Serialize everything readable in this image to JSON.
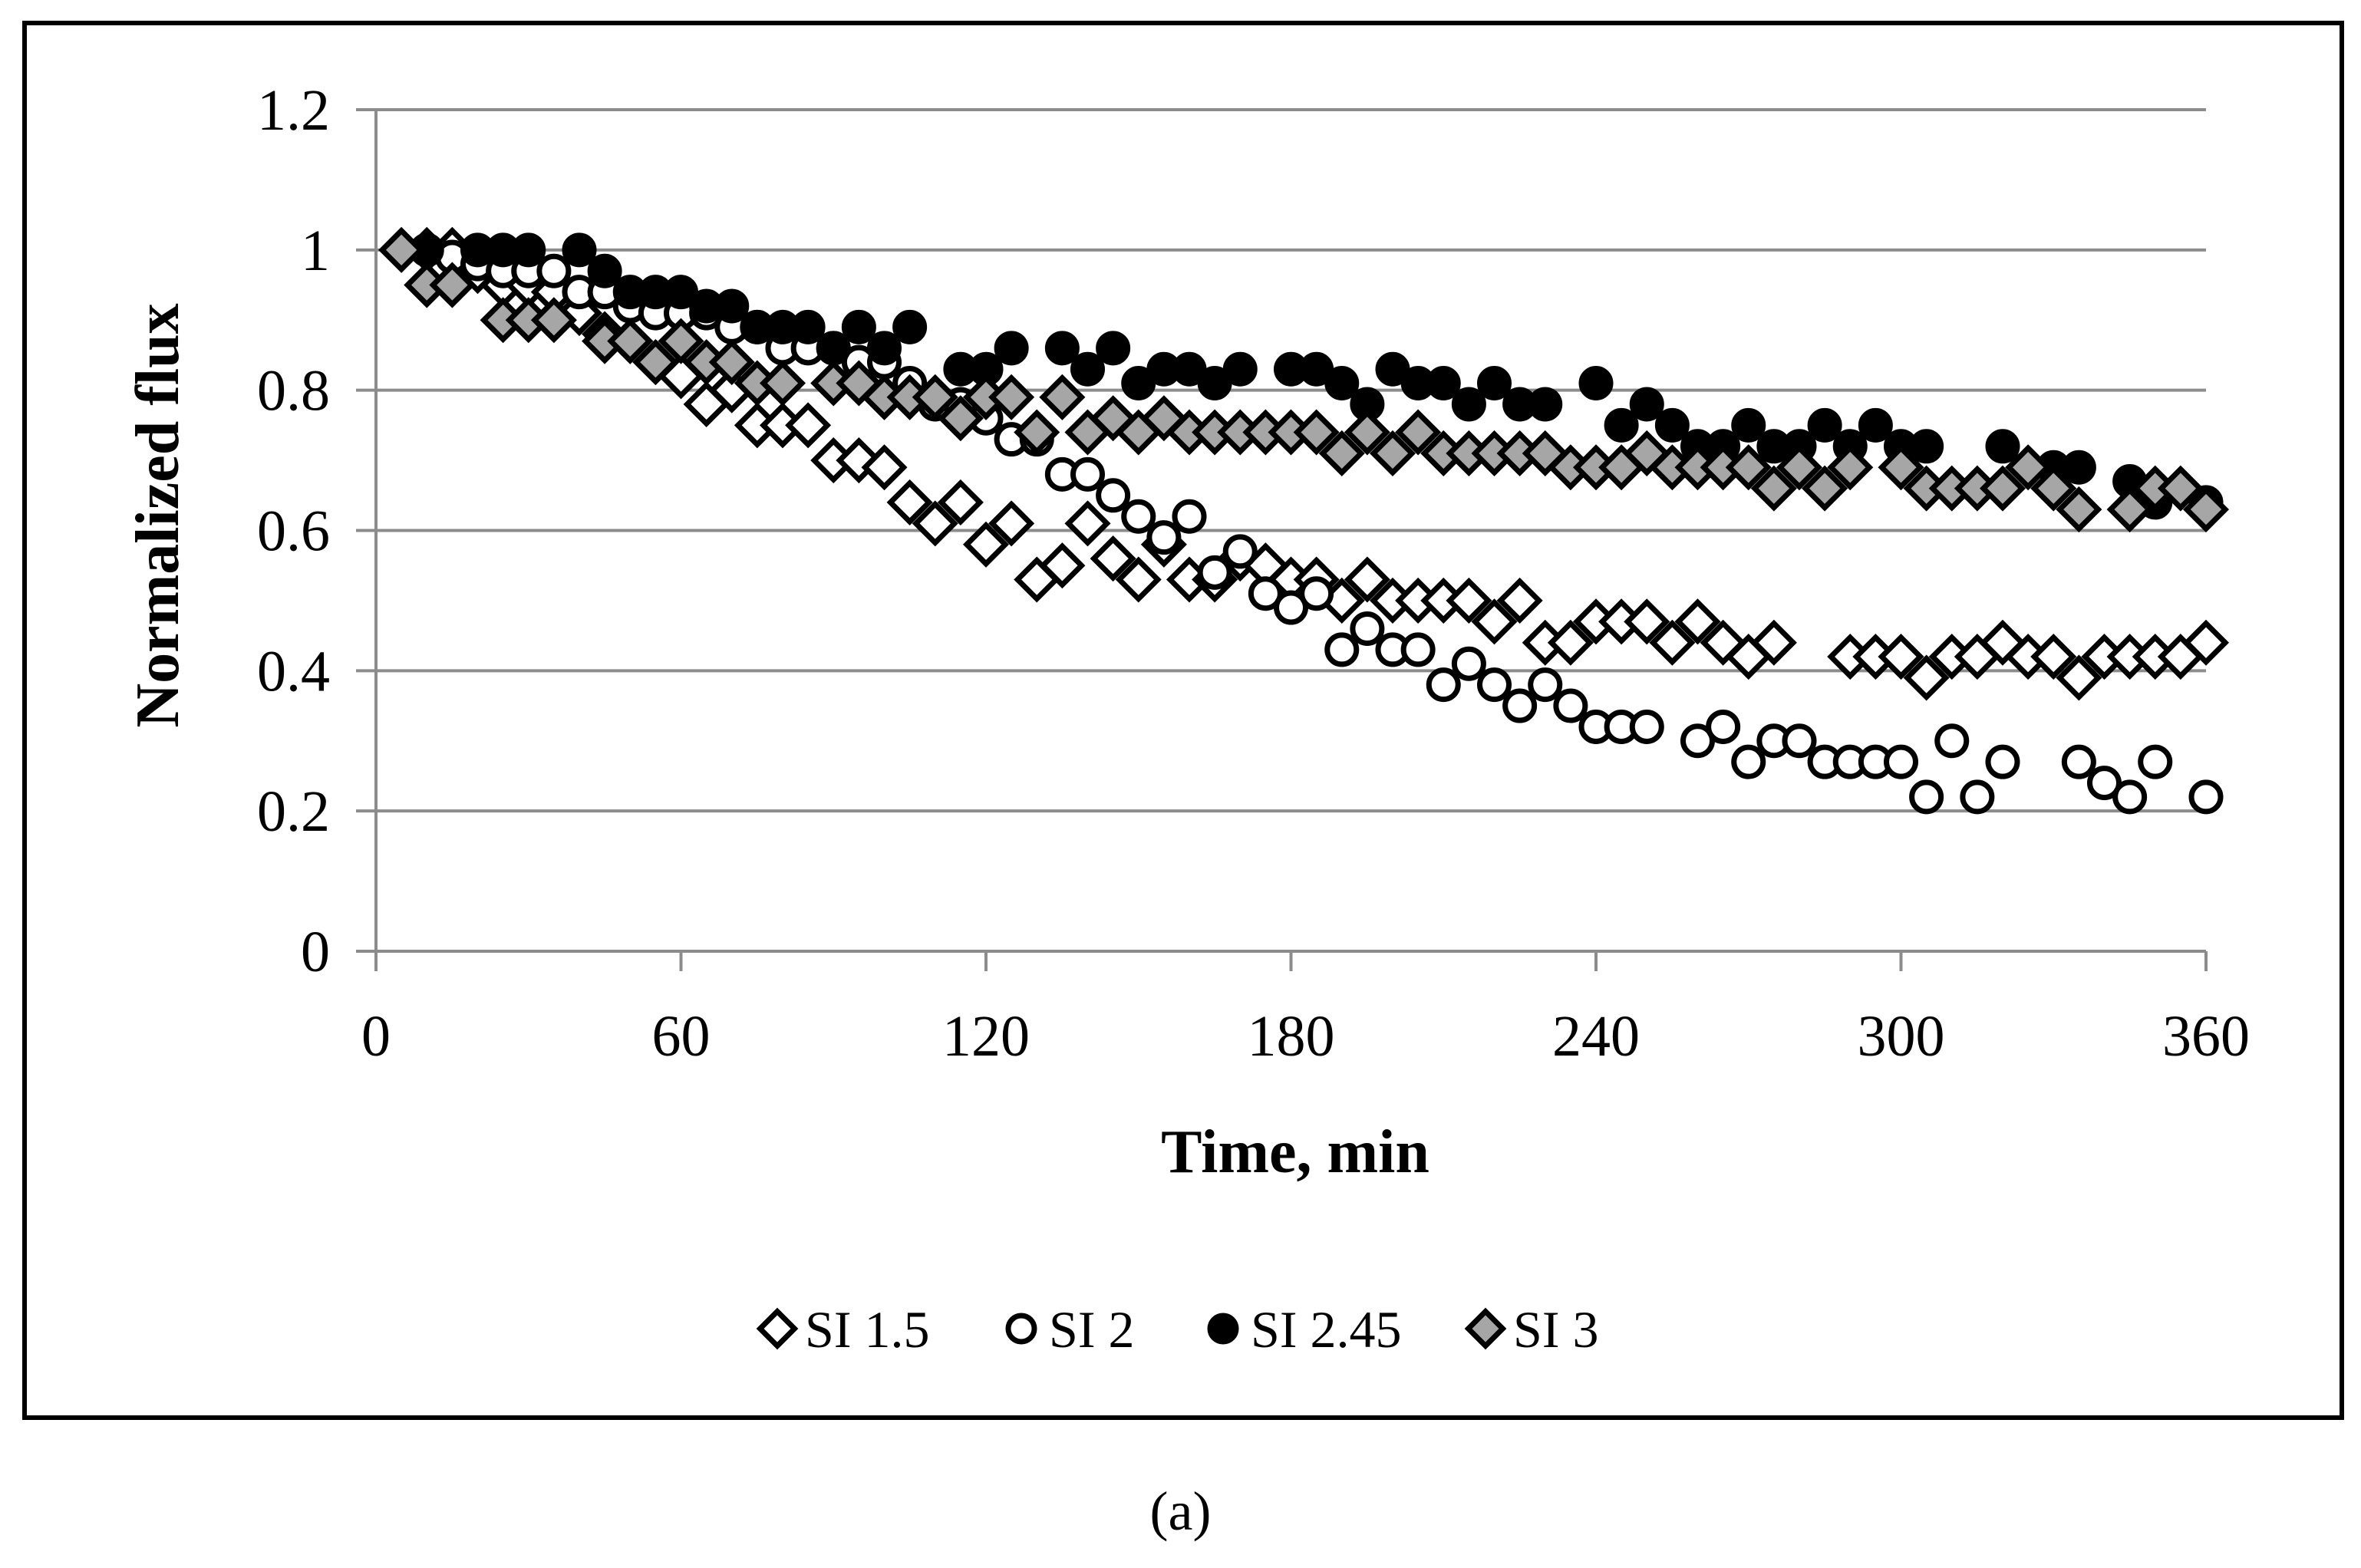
{
  "caption": "(a)",
  "colors": {
    "grid": "#8c8c8c",
    "axis": "#8c8c8c",
    "frame": "#000000",
    "marker_stroke": "#000000",
    "fill_open": "#ffffff",
    "fill_black": "#000000",
    "fill_gray": "#a6a6a6"
  },
  "chart_data": {
    "type": "scatter",
    "title": "",
    "xlabel": "Time, min",
    "ylabel": "Normalized flux",
    "xlim": [
      0,
      360
    ],
    "ylim": [
      0,
      1.2
    ],
    "xticks": [
      0,
      60,
      120,
      180,
      240,
      300,
      360
    ],
    "yticks": [
      0,
      0.2,
      0.4,
      0.6,
      0.8,
      1,
      1.2
    ],
    "xtick_labels": [
      "0",
      "60",
      "120",
      "180",
      "240",
      "300",
      "360"
    ],
    "ytick_labels": [
      "0",
      "0.2",
      "0.4",
      "0.6",
      "0.8",
      "1",
      "1.2"
    ],
    "grid": "horizontal",
    "legend_position": "bottom",
    "series": [
      {
        "name": "SI 1.5",
        "marker": "diamond",
        "fill": "#ffffff",
        "points": [
          [
            10,
            1
          ],
          [
            15,
            1
          ],
          [
            20,
            0.97
          ],
          [
            25,
            0.95
          ],
          [
            30,
            0.95
          ],
          [
            35,
            0.94
          ],
          [
            40,
            0.91
          ],
          [
            45,
            0.88
          ],
          [
            50,
            0.87
          ],
          [
            55,
            0.84
          ],
          [
            60,
            0.82
          ],
          [
            65,
            0.78
          ],
          [
            70,
            0.8
          ],
          [
            75,
            0.75
          ],
          [
            80,
            0.75
          ],
          [
            85,
            0.75
          ],
          [
            90,
            0.7
          ],
          [
            95,
            0.7
          ],
          [
            100,
            0.69
          ],
          [
            105,
            0.64
          ],
          [
            110,
            0.61
          ],
          [
            115,
            0.64
          ],
          [
            120,
            0.58
          ],
          [
            125,
            0.61
          ],
          [
            130,
            0.53
          ],
          [
            135,
            0.55
          ],
          [
            140,
            0.61
          ],
          [
            145,
            0.56
          ],
          [
            150,
            0.53
          ],
          [
            155,
            0.58
          ],
          [
            160,
            0.53
          ],
          [
            165,
            0.53
          ],
          [
            170,
            0.56
          ],
          [
            175,
            0.55
          ],
          [
            180,
            0.53
          ],
          [
            185,
            0.53
          ],
          [
            190,
            0.5
          ],
          [
            195,
            0.53
          ],
          [
            200,
            0.5
          ],
          [
            205,
            0.5
          ],
          [
            210,
            0.5
          ],
          [
            215,
            0.5
          ],
          [
            220,
            0.47
          ],
          [
            225,
            0.5
          ],
          [
            230,
            0.44
          ],
          [
            235,
            0.44
          ],
          [
            240,
            0.47
          ],
          [
            245,
            0.47
          ],
          [
            250,
            0.47
          ],
          [
            255,
            0.44
          ],
          [
            260,
            0.47
          ],
          [
            265,
            0.44
          ],
          [
            270,
            0.42
          ],
          [
            275,
            0.44
          ],
          [
            290,
            0.42
          ],
          [
            295,
            0.42
          ],
          [
            300,
            0.42
          ],
          [
            305,
            0.39
          ],
          [
            310,
            0.42
          ],
          [
            315,
            0.42
          ],
          [
            320,
            0.44
          ],
          [
            325,
            0.42
          ],
          [
            330,
            0.42
          ],
          [
            335,
            0.39
          ],
          [
            340,
            0.42
          ],
          [
            345,
            0.42
          ],
          [
            350,
            0.42
          ],
          [
            355,
            0.42
          ],
          [
            360,
            0.44
          ]
        ]
      },
      {
        "name": "SI 2",
        "marker": "circle",
        "fill": "#ffffff",
        "points": [
          [
            15,
            0.99
          ],
          [
            20,
            0.98
          ],
          [
            25,
            0.97
          ],
          [
            30,
            0.97
          ],
          [
            35,
            0.97
          ],
          [
            40,
            0.94
          ],
          [
            45,
            0.94
          ],
          [
            50,
            0.92
          ],
          [
            55,
            0.91
          ],
          [
            60,
            0.91
          ],
          [
            65,
            0.91
          ],
          [
            70,
            0.89
          ],
          [
            75,
            0.89
          ],
          [
            80,
            0.86
          ],
          [
            85,
            0.86
          ],
          [
            90,
            0.86
          ],
          [
            95,
            0.84
          ],
          [
            100,
            0.84
          ],
          [
            105,
            0.81
          ],
          [
            110,
            0.78
          ],
          [
            115,
            0.78
          ],
          [
            120,
            0.76
          ],
          [
            125,
            0.73
          ],
          [
            130,
            0.73
          ],
          [
            135,
            0.68
          ],
          [
            140,
            0.68
          ],
          [
            145,
            0.65
          ],
          [
            150,
            0.62
          ],
          [
            155,
            0.59
          ],
          [
            160,
            0.62
          ],
          [
            165,
            0.54
          ],
          [
            170,
            0.57
          ],
          [
            175,
            0.51
          ],
          [
            180,
            0.49
          ],
          [
            185,
            0.51
          ],
          [
            190,
            0.43
          ],
          [
            195,
            0.46
          ],
          [
            200,
            0.43
          ],
          [
            205,
            0.43
          ],
          [
            210,
            0.38
          ],
          [
            215,
            0.41
          ],
          [
            220,
            0.38
          ],
          [
            225,
            0.35
          ],
          [
            230,
            0.38
          ],
          [
            235,
            0.35
          ],
          [
            240,
            0.32
          ],
          [
            245,
            0.32
          ],
          [
            250,
            0.32
          ],
          [
            260,
            0.3
          ],
          [
            265,
            0.32
          ],
          [
            270,
            0.27
          ],
          [
            275,
            0.3
          ],
          [
            280,
            0.3
          ],
          [
            285,
            0.27
          ],
          [
            290,
            0.27
          ],
          [
            295,
            0.27
          ],
          [
            300,
            0.27
          ],
          [
            305,
            0.22
          ],
          [
            310,
            0.3
          ],
          [
            315,
            0.22
          ],
          [
            320,
            0.27
          ],
          [
            335,
            0.27
          ],
          [
            340,
            0.24
          ],
          [
            345,
            0.22
          ],
          [
            350,
            0.27
          ],
          [
            360,
            0.22
          ]
        ]
      },
      {
        "name": "SI 2.45",
        "marker": "circle",
        "fill": "#000000",
        "points": [
          [
            10,
            1
          ],
          [
            20,
            1
          ],
          [
            25,
            1
          ],
          [
            30,
            1
          ],
          [
            40,
            1
          ],
          [
            45,
            0.97
          ],
          [
            50,
            0.94
          ],
          [
            55,
            0.94
          ],
          [
            60,
            0.94
          ],
          [
            65,
            0.92
          ],
          [
            70,
            0.92
          ],
          [
            75,
            0.89
          ],
          [
            80,
            0.89
          ],
          [
            85,
            0.89
          ],
          [
            90,
            0.86
          ],
          [
            95,
            0.89
          ],
          [
            100,
            0.86
          ],
          [
            105,
            0.89
          ],
          [
            115,
            0.83
          ],
          [
            120,
            0.83
          ],
          [
            125,
            0.86
          ],
          [
            135,
            0.86
          ],
          [
            140,
            0.83
          ],
          [
            145,
            0.86
          ],
          [
            150,
            0.81
          ],
          [
            155,
            0.83
          ],
          [
            160,
            0.83
          ],
          [
            165,
            0.81
          ],
          [
            170,
            0.83
          ],
          [
            180,
            0.83
          ],
          [
            185,
            0.83
          ],
          [
            190,
            0.81
          ],
          [
            195,
            0.78
          ],
          [
            200,
            0.83
          ],
          [
            205,
            0.81
          ],
          [
            210,
            0.81
          ],
          [
            215,
            0.78
          ],
          [
            220,
            0.81
          ],
          [
            225,
            0.78
          ],
          [
            230,
            0.78
          ],
          [
            240,
            0.81
          ],
          [
            245,
            0.75
          ],
          [
            250,
            0.78
          ],
          [
            255,
            0.75
          ],
          [
            260,
            0.72
          ],
          [
            265,
            0.72
          ],
          [
            270,
            0.75
          ],
          [
            275,
            0.72
          ],
          [
            280,
            0.72
          ],
          [
            285,
            0.75
          ],
          [
            290,
            0.72
          ],
          [
            295,
            0.75
          ],
          [
            300,
            0.72
          ],
          [
            305,
            0.72
          ],
          [
            320,
            0.72
          ],
          [
            330,
            0.69
          ],
          [
            335,
            0.69
          ],
          [
            345,
            0.67
          ],
          [
            350,
            0.64
          ],
          [
            360,
            0.64
          ]
        ]
      },
      {
        "name": "SI 3",
        "marker": "diamond",
        "fill": "#a6a6a6",
        "points": [
          [
            5,
            1
          ],
          [
            10,
            0.95
          ],
          [
            15,
            0.95
          ],
          [
            25,
            0.9
          ],
          [
            30,
            0.9
          ],
          [
            35,
            0.9
          ],
          [
            45,
            0.87
          ],
          [
            50,
            0.87
          ],
          [
            55,
            0.84
          ],
          [
            60,
            0.87
          ],
          [
            65,
            0.84
          ],
          [
            70,
            0.84
          ],
          [
            75,
            0.81
          ],
          [
            80,
            0.81
          ],
          [
            90,
            0.81
          ],
          [
            95,
            0.81
          ],
          [
            100,
            0.79
          ],
          [
            105,
            0.79
          ],
          [
            110,
            0.79
          ],
          [
            115,
            0.76
          ],
          [
            120,
            0.79
          ],
          [
            125,
            0.79
          ],
          [
            130,
            0.74
          ],
          [
            135,
            0.79
          ],
          [
            140,
            0.74
          ],
          [
            145,
            0.76
          ],
          [
            150,
            0.74
          ],
          [
            155,
            0.76
          ],
          [
            160,
            0.74
          ],
          [
            165,
            0.74
          ],
          [
            170,
            0.74
          ],
          [
            175,
            0.74
          ],
          [
            180,
            0.74
          ],
          [
            185,
            0.74
          ],
          [
            190,
            0.71
          ],
          [
            195,
            0.74
          ],
          [
            200,
            0.71
          ],
          [
            205,
            0.74
          ],
          [
            210,
            0.71
          ],
          [
            215,
            0.71
          ],
          [
            220,
            0.71
          ],
          [
            225,
            0.71
          ],
          [
            230,
            0.71
          ],
          [
            235,
            0.69
          ],
          [
            240,
            0.69
          ],
          [
            245,
            0.69
          ],
          [
            250,
            0.71
          ],
          [
            255,
            0.69
          ],
          [
            260,
            0.69
          ],
          [
            265,
            0.69
          ],
          [
            270,
            0.69
          ],
          [
            275,
            0.66
          ],
          [
            280,
            0.69
          ],
          [
            285,
            0.66
          ],
          [
            290,
            0.69
          ],
          [
            300,
            0.69
          ],
          [
            305,
            0.66
          ],
          [
            310,
            0.66
          ],
          [
            315,
            0.66
          ],
          [
            320,
            0.66
          ],
          [
            325,
            0.69
          ],
          [
            330,
            0.66
          ],
          [
            335,
            0.63
          ],
          [
            345,
            0.63
          ],
          [
            350,
            0.66
          ],
          [
            355,
            0.66
          ],
          [
            360,
            0.63
          ]
        ]
      }
    ]
  }
}
